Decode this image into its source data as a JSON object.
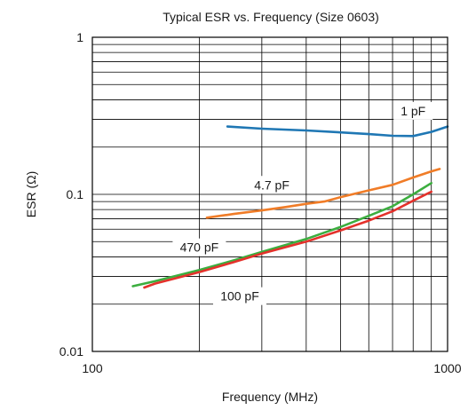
{
  "chart_data": {
    "type": "line",
    "title": "Typical ESR vs. Frequency (Size 0603)",
    "xlabel": "Frequency (MHz)",
    "ylabel": "ESR (Ω)",
    "x_scale": "log",
    "y_scale": "log",
    "xlim": [
      100,
      1000
    ],
    "ylim": [
      0.01,
      1
    ],
    "x_ticks": [
      100,
      1000
    ],
    "x_tick_labels": [
      "100",
      "1000"
    ],
    "y_ticks": [
      0.01,
      0.1,
      1
    ],
    "y_tick_labels": [
      "0.01",
      "0.1",
      "1"
    ],
    "grid": true,
    "legend": "inline labels",
    "series": [
      {
        "name": "1 pF",
        "color": "#1f77b4",
        "x": [
          240,
          300,
          400,
          500,
          600,
          700,
          800,
          900,
          1000
        ],
        "y": [
          0.27,
          0.262,
          0.255,
          0.248,
          0.242,
          0.236,
          0.235,
          0.25,
          0.27
        ]
      },
      {
        "name": "4.7 pF",
        "color": "#f07c27",
        "x": [
          210,
          250,
          300,
          350,
          400,
          450,
          500,
          600,
          700,
          800,
          900,
          950
        ],
        "y": [
          0.071,
          0.075,
          0.079,
          0.083,
          0.087,
          0.09,
          0.096,
          0.106,
          0.115,
          0.128,
          0.14,
          0.145
        ]
      },
      {
        "name": "470 pF",
        "color": "#3cae3f",
        "x": [
          130,
          150,
          200,
          250,
          300,
          400,
          500,
          600,
          700,
          800,
          900
        ],
        "y": [
          0.026,
          0.028,
          0.033,
          0.038,
          0.043,
          0.052,
          0.062,
          0.073,
          0.084,
          0.1,
          0.118
        ]
      },
      {
        "name": "100 pF",
        "color": "#e4312b",
        "x": [
          140,
          150,
          200,
          250,
          300,
          400,
          500,
          600,
          700,
          800,
          900
        ],
        "y": [
          0.0255,
          0.027,
          0.032,
          0.037,
          0.042,
          0.05,
          0.059,
          0.068,
          0.078,
          0.091,
          0.104
        ]
      }
    ]
  }
}
